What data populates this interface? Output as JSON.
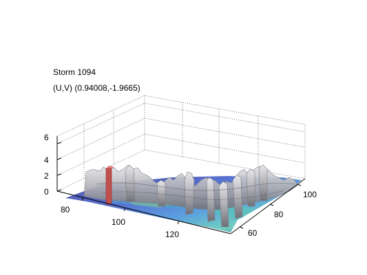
{
  "chart_data": {
    "type": "surface",
    "title_lines": [
      "Storm 1094",
      "(U,V) (0.94008,-1.9665)"
    ],
    "z_ticks": [
      "0",
      "2",
      "4",
      "6"
    ],
    "x_ticks": [
      "80",
      "100",
      "120"
    ],
    "y_ticks": [
      "60",
      "80",
      "100"
    ],
    "zlim": [
      0,
      7
    ],
    "xlim": [
      72,
      140
    ],
    "ylim": [
      50,
      108
    ],
    "grid": true,
    "colors": {
      "surface": "#a8a8ad",
      "surface_edge": "#7a7a80",
      "base_colormap": [
        "#2b2f8f",
        "#3a56c8",
        "#3f8fd8",
        "#56c7b5",
        "#8ed07a"
      ],
      "marker": "#c0504d"
    },
    "marker": {
      "x": 78,
      "y": 56,
      "z": 2.5
    }
  }
}
